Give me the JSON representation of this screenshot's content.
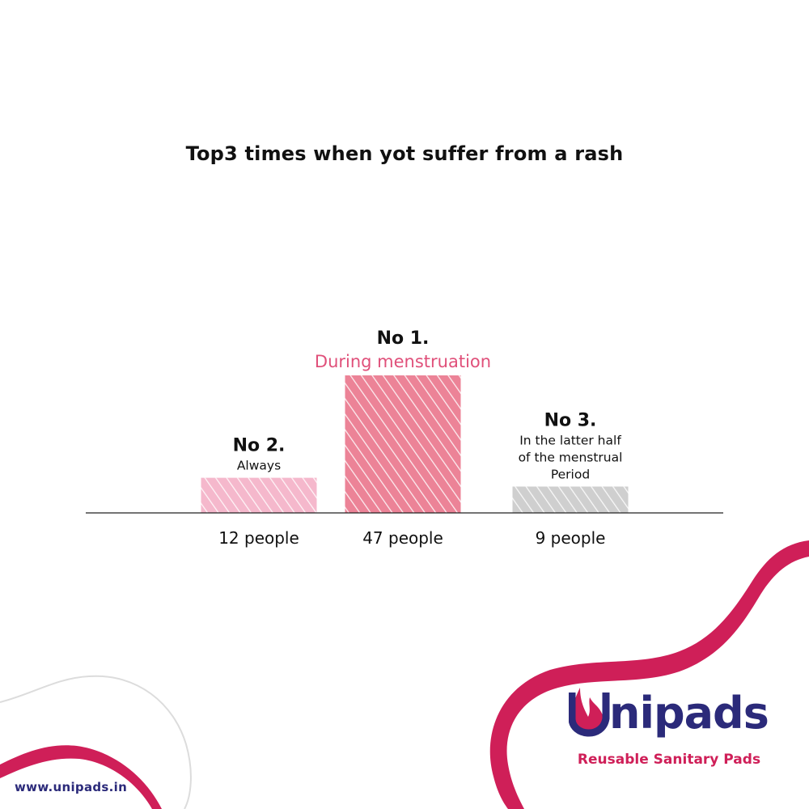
{
  "title": "Top3 times when yot suffer from a rash",
  "chart_data": {
    "type": "bar",
    "title": "Top3 times when yot suffer from a rash",
    "categories": [
      "Always",
      "During menstruation",
      "In the latter half of the menstrual Period"
    ],
    "values": [
      12,
      47,
      9
    ],
    "ranks": [
      "No 2.",
      "No 1.",
      "No 3."
    ],
    "value_labels": [
      "12 people",
      "47 people",
      "9 people"
    ],
    "description_lines": [
      [
        "Always"
      ],
      [
        "During menstruation"
      ],
      [
        "In the latter half",
        "of the menstrual",
        "Period"
      ]
    ],
    "colors": [
      "#f5b8cc",
      "#ec8397",
      "#cfcfcf"
    ],
    "ylim": [
      0,
      47
    ],
    "grid": false
  },
  "footer": {
    "url": "www.unipads.in",
    "brand": "Unipads",
    "tagline": "Reusable Sanitary Pads",
    "brand_color": "#2b2a7a",
    "accent_color": "#cf1f58"
  }
}
